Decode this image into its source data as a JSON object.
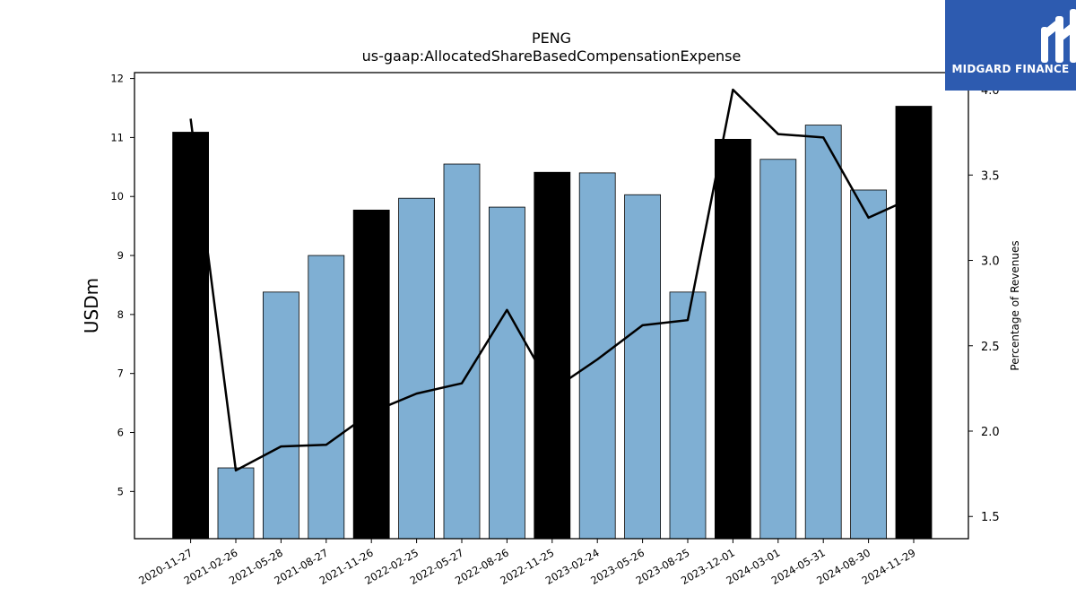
{
  "chart_data": {
    "type": "bar",
    "title": "PENG",
    "subtitle": "us-gaap:AllocatedShareBasedCompensationExpense",
    "ylabel": "USDm",
    "y2label": "Percentage of Revenues",
    "ylim": [
      4.2,
      12.1
    ],
    "y2lim": [
      1.37,
      4.1
    ],
    "yticks": [
      "5",
      "6",
      "7",
      "8",
      "9",
      "10",
      "11",
      "12"
    ],
    "y2ticks": [
      "1.5",
      "2.0",
      "2.5",
      "3.0",
      "3.5",
      "4.0"
    ],
    "categories": [
      "2020-11-27",
      "2021-02-26",
      "2021-05-28",
      "2021-08-27",
      "2021-11-26",
      "2022-02-25",
      "2022-05-27",
      "2022-08-26",
      "2022-11-25",
      "2023-02-24",
      "2023-05-26",
      "2023-08-25",
      "2023-12-01",
      "2024-03-01",
      "2024-05-31",
      "2024-08-30",
      "2024-11-29"
    ],
    "series": [
      {
        "type": "bar",
        "axis": "left",
        "values": [
          11.09,
          5.4,
          8.38,
          9.0,
          9.77,
          9.97,
          10.55,
          9.82,
          10.41,
          10.4,
          10.03,
          8.38,
          10.97,
          10.63,
          11.21,
          10.11,
          11.53
        ],
        "highlight": [
          true,
          false,
          false,
          false,
          true,
          false,
          false,
          false,
          true,
          false,
          false,
          false,
          true,
          false,
          false,
          false,
          true
        ]
      },
      {
        "type": "line",
        "axis": "right",
        "values": [
          3.83,
          1.77,
          1.91,
          1.92,
          2.11,
          2.22,
          2.28,
          2.71,
          2.24,
          2.42,
          2.62,
          2.65,
          4.0,
          3.74,
          3.72,
          3.25,
          3.37
        ]
      }
    ],
    "colors": {
      "bar": "#7fafd3",
      "bar_highlight": "#000000",
      "line": "#000000"
    },
    "grid": false
  },
  "logo": {
    "text": "MIDGARD FINANCE",
    "color": "#2d5bb0"
  }
}
